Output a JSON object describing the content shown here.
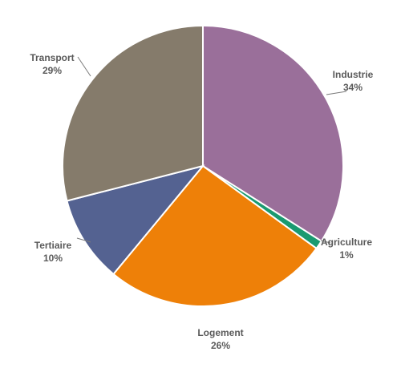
{
  "chart_data": {
    "type": "pie",
    "title": "",
    "start_angle_deg": 0,
    "direction": "clockwise",
    "slices": [
      {
        "label": "Industrie",
        "value": 34,
        "value_label": "34%",
        "color": "#9a6f9a"
      },
      {
        "label": "Agriculture",
        "value": 1,
        "value_label": "1%",
        "color": "#1a9a70"
      },
      {
        "label": "Logement",
        "value": 26,
        "value_label": "26%",
        "color": "#ee8008"
      },
      {
        "label": "Tertiaire",
        "value": 10,
        "value_label": "10%",
        "color": "#546291"
      },
      {
        "label": "Transport",
        "value": 29,
        "value_label": "29%",
        "color": "#857b6b"
      }
    ]
  }
}
